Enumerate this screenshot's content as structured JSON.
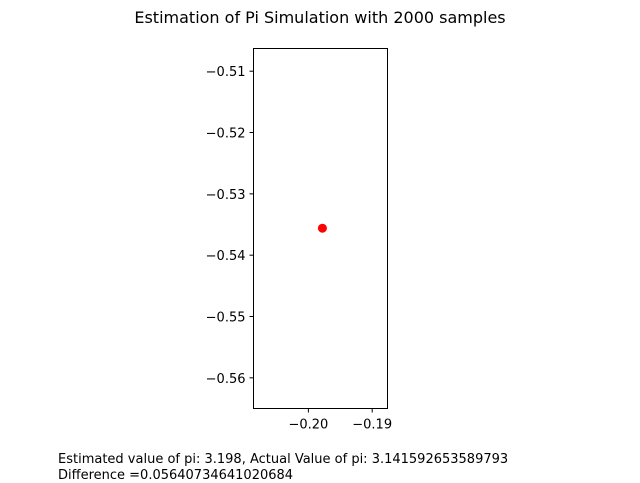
{
  "chart_data": {
    "type": "scatter",
    "title": "Estimation of Pi Simulation with 2000 samples",
    "xlabel": "",
    "ylabel": "",
    "xlim": [
      -0.2086,
      -0.1876
    ],
    "ylim": [
      -0.565,
      -0.5063
    ],
    "grid": false,
    "x_ticks": [
      {
        "value": -0.2,
        "label": "−0.20"
      },
      {
        "value": -0.19,
        "label": "−0.19"
      }
    ],
    "y_ticks": [
      {
        "value": -0.51,
        "label": "−0.51"
      },
      {
        "value": -0.52,
        "label": "−0.52"
      },
      {
        "value": -0.53,
        "label": "−0.53"
      },
      {
        "value": -0.54,
        "label": "−0.54"
      },
      {
        "value": -0.55,
        "label": "−0.55"
      },
      {
        "value": -0.56,
        "label": "−0.56"
      }
    ],
    "series": [
      {
        "color": "#ff0000",
        "points": [
          {
            "x": -0.1978,
            "y": -0.5356
          }
        ]
      }
    ]
  },
  "caption": {
    "line1": "Estimated value of pi: 3.198, Actual Value of pi: 3.141592653589793",
    "line2": "Difference =0.05640734641020684"
  }
}
